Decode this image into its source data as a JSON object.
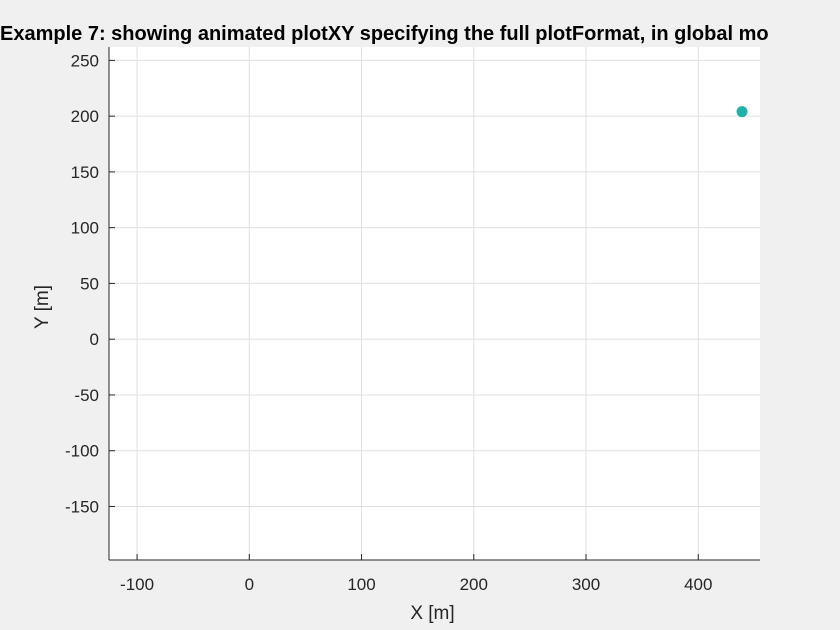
{
  "chart_data": {
    "type": "scatter",
    "title": "Example 7: showing animated plotXY specifying the full plotFormat, in global mo",
    "xlabel": "X [m]",
    "ylabel": "Y [m]",
    "xlim": [
      -125,
      455
    ],
    "ylim": [
      -198,
      262
    ],
    "xticks": [
      -100,
      0,
      100,
      200,
      300,
      400
    ],
    "yticks": [
      -150,
      -100,
      -50,
      0,
      50,
      100,
      150,
      200,
      250
    ],
    "grid": true,
    "legend": null,
    "series": [
      {
        "color": "#20b2aa",
        "marker": "o",
        "x": [
          439
        ],
        "y": [
          204
        ]
      }
    ]
  },
  "colors": {
    "background": "#f0f0f0",
    "axes_face": "#ffffff",
    "axis": "#262626",
    "grid": "#dfdfdf",
    "marker": "#20b2aa"
  }
}
